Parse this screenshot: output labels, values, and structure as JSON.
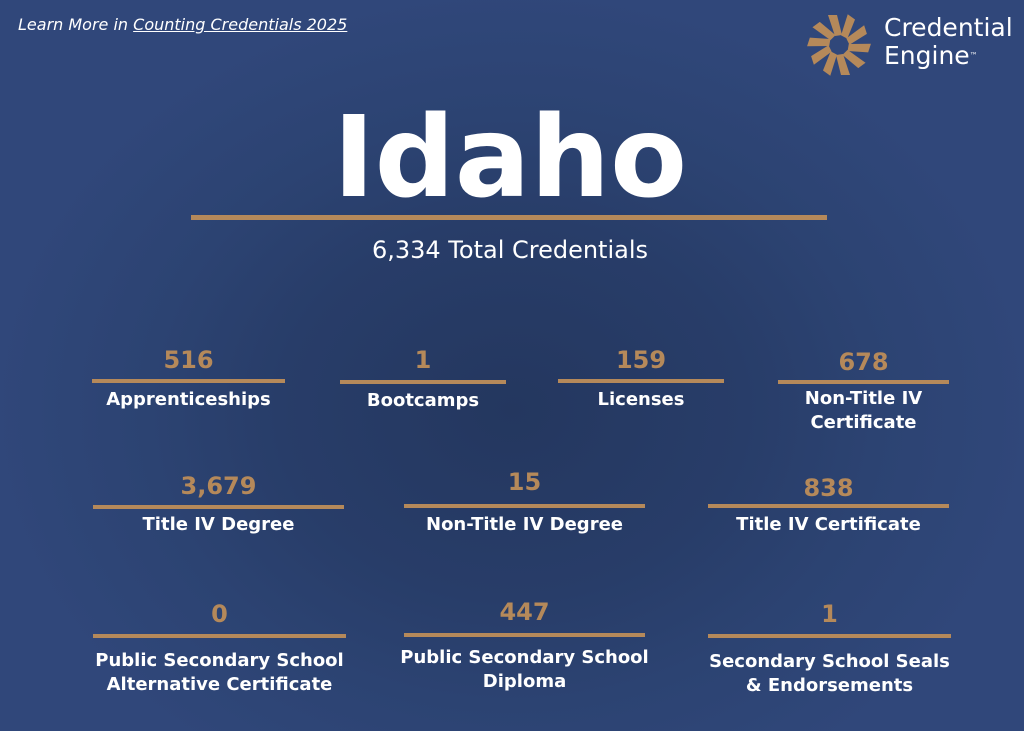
{
  "header": {
    "learn_more_prefix": "Learn More in ",
    "learn_more_link": "Counting Credentials 2025"
  },
  "logo": {
    "line1": "Credential",
    "line2": "Engine",
    "trademark": "™",
    "icon": "sunburst-logo-icon"
  },
  "state": {
    "name": "Idaho",
    "total": "6,334 Total Credentials"
  },
  "stats": [
    {
      "value": "516",
      "label_lines": [
        "Apprenticeships"
      ]
    },
    {
      "value": "1",
      "label_lines": [
        "Bootcamps"
      ]
    },
    {
      "value": "159",
      "label_lines": [
        "Licenses"
      ]
    },
    {
      "value": "678",
      "label_lines": [
        "Non-Title IV",
        "Certificate"
      ]
    },
    {
      "value": "3,679",
      "label_lines": [
        "Title IV Degree"
      ]
    },
    {
      "value": "15",
      "label_lines": [
        "Non-Title IV Degree"
      ]
    },
    {
      "value": "838",
      "label_lines": [
        "Title IV Certificate"
      ]
    },
    {
      "value": "0",
      "label_lines": [
        "Public Secondary School",
        "Alternative Certificate"
      ]
    },
    {
      "value": "447",
      "label_lines": [
        "Public Secondary School",
        "Diploma"
      ]
    },
    {
      "value": "1",
      "label_lines": [
        "Secondary School Seals",
        "& Endorsements"
      ]
    }
  ],
  "colors": {
    "background": "#2c4372",
    "accent": "#b5895a",
    "text": "#ffffff"
  }
}
